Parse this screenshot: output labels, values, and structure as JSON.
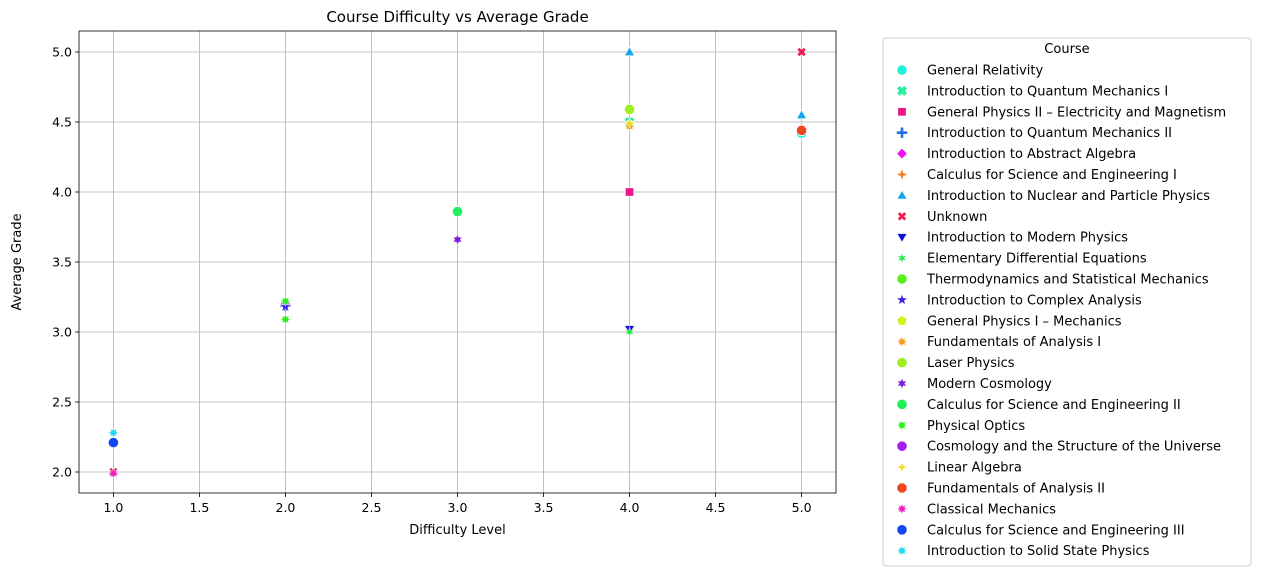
{
  "chart_data": {
    "type": "scatter",
    "title": "Course Difficulty vs Average Grade",
    "xlabel": "Difficulty Level",
    "ylabel": "Average Grade",
    "xlim": [
      0.8,
      5.2
    ],
    "ylim": [
      1.85,
      5.15
    ],
    "xticks": [
      "1.0",
      "1.5",
      "2.0",
      "2.5",
      "3.0",
      "3.5",
      "4.0",
      "4.5",
      "5.0"
    ],
    "yticks": [
      "2.0",
      "2.5",
      "3.0",
      "3.5",
      "4.0",
      "4.5",
      "5.0"
    ],
    "grid": true,
    "legend_title": "Course",
    "legend_position": "outside-right",
    "series": [
      {
        "name": "General Relativity",
        "marker": "circle",
        "color": "#1ff2d9",
        "points": [
          [
            5.0,
            4.42
          ]
        ]
      },
      {
        "name": "Introduction to Quantum Mechanics I",
        "marker": "x",
        "color": "#28f09c",
        "points": [
          [
            4.0,
            4.5
          ]
        ]
      },
      {
        "name": "General Physics II – Electricity and Magnetism",
        "marker": "square",
        "color": "#f01584",
        "points": [
          [
            4.0,
            4.0
          ]
        ]
      },
      {
        "name": "Introduction to Quantum Mechanics II",
        "marker": "plus",
        "color": "#1f6ee8",
        "points": [
          [
            2.0,
            3.19
          ]
        ]
      },
      {
        "name": "Introduction to Abstract Algebra",
        "marker": "diamond",
        "color": "#f015f0",
        "points": [
          [
            2.0,
            3.2
          ]
        ]
      },
      {
        "name": "Calculus for Science and Engineering I",
        "marker": "star4",
        "color": "#f57f1f",
        "points": [
          [
            5.0,
            4.46
          ]
        ]
      },
      {
        "name": "Introduction to Nuclear and Particle Physics",
        "marker": "triangle-up",
        "color": "#13a7f2",
        "points": [
          [
            4.0,
            5.0
          ],
          [
            5.0,
            4.55
          ]
        ]
      },
      {
        "name": "Unknown",
        "marker": "x-thin",
        "color": "#f01f50",
        "points": [
          [
            1.0,
            2.0
          ],
          [
            5.0,
            5.0
          ]
        ]
      },
      {
        "name": "Introduction to Modern Physics",
        "marker": "triangle-down",
        "color": "#0f0fd9",
        "points": [
          [
            4.0,
            3.02
          ]
        ]
      },
      {
        "name": "Elementary Differential Equations",
        "marker": "asterisk",
        "color": "#1ff046",
        "points": [
          [
            4.0,
            3.0
          ]
        ]
      },
      {
        "name": "Thermodynamics and Statistical Mechanics",
        "marker": "octagon",
        "color": "#5cf01f",
        "points": [
          [
            3.0,
            3.86
          ]
        ]
      },
      {
        "name": "Introduction to Complex Analysis",
        "marker": "star5",
        "color": "#3c1ff0",
        "points": [
          [
            2.0,
            3.18
          ]
        ]
      },
      {
        "name": "General Physics I – Mechanics",
        "marker": "pentagon",
        "color": "#d7f01f",
        "points": [
          [
            4.0,
            4.48
          ]
        ]
      },
      {
        "name": "Fundamentals of Analysis I",
        "marker": "sparkle",
        "color": "#f0a21f",
        "points": [
          [
            4.0,
            4.47
          ],
          [
            5.0,
            4.45
          ]
        ]
      },
      {
        "name": "Laser Physics",
        "marker": "circle",
        "color": "#9cf01f",
        "points": [
          [
            4.0,
            4.59
          ]
        ]
      },
      {
        "name": "Modern Cosmology",
        "marker": "star6",
        "color": "#7c1fd9",
        "points": [
          [
            3.0,
            3.66
          ]
        ]
      },
      {
        "name": "Calculus for Science and Engineering II",
        "marker": "octagon",
        "color": "#1ff05a",
        "points": [
          [
            3.0,
            3.86
          ]
        ]
      },
      {
        "name": "Physical Optics",
        "marker": "sparkle",
        "color": "#2ff01f",
        "points": [
          [
            2.0,
            3.09
          ],
          [
            2.0,
            3.22
          ]
        ]
      },
      {
        "name": "Cosmology and the Structure of the Universe",
        "marker": "circle",
        "color": "#a31ff0",
        "points": [
          [
            1.0,
            2.21
          ]
        ]
      },
      {
        "name": "Linear Algebra",
        "marker": "star4-small",
        "color": "#f0d91f",
        "points": [
          [
            4.0,
            4.49
          ]
        ]
      },
      {
        "name": "Fundamentals of Analysis II",
        "marker": "octagon",
        "color": "#f0461f",
        "points": [
          [
            5.0,
            4.44
          ]
        ]
      },
      {
        "name": "Classical Mechanics",
        "marker": "sparkle",
        "color": "#f01fc3",
        "points": [
          [
            1.0,
            1.99
          ]
        ]
      },
      {
        "name": "Calculus for Science and Engineering III",
        "marker": "circle",
        "color": "#1446f0",
        "points": [
          [
            1.0,
            2.21
          ]
        ]
      },
      {
        "name": "Introduction to Solid State Physics",
        "marker": "sparkle",
        "color": "#1fd9f0",
        "points": [
          [
            1.0,
            2.28
          ]
        ]
      }
    ]
  }
}
